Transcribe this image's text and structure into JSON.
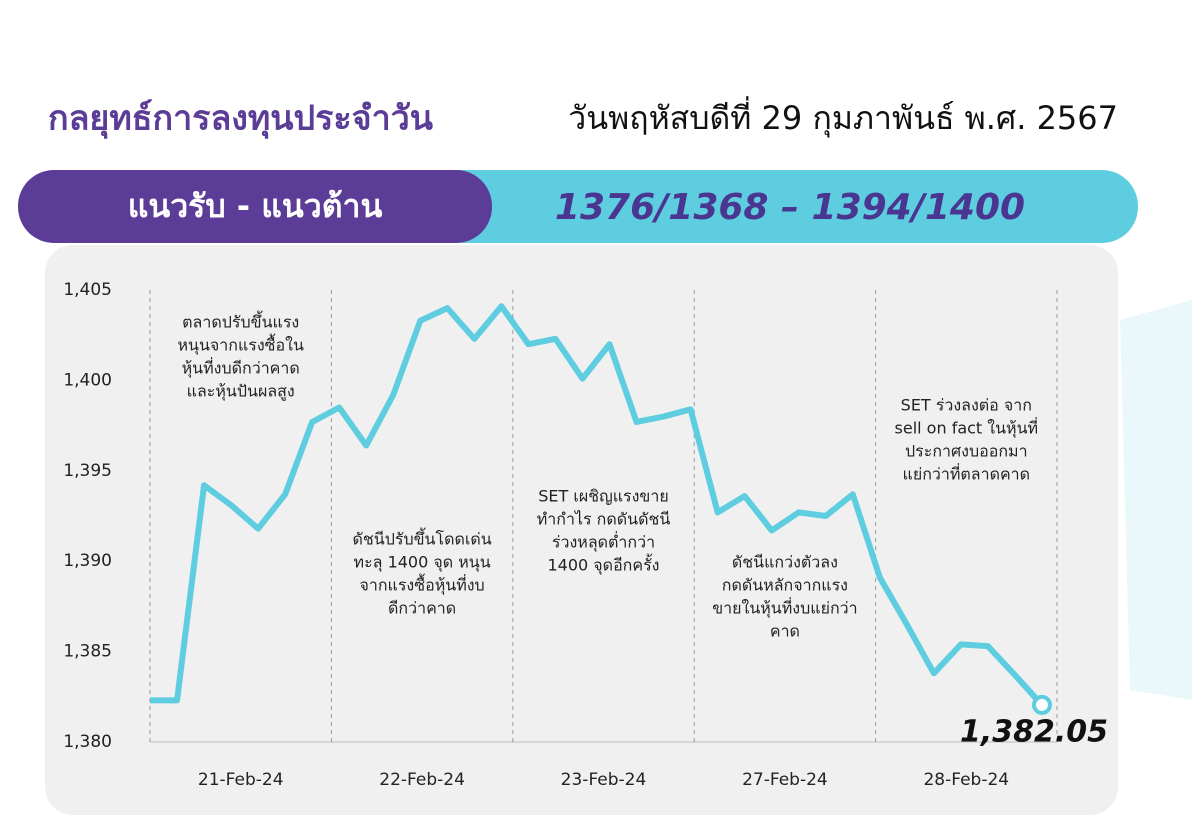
{
  "header": {
    "title": "กลยุทธ์การลงทุนประจำวัน",
    "date": "วันพฤหัสบดีที่ 29 กุมภาพันธ์ พ.ศ. 2567"
  },
  "banner": {
    "label": "แนวรับ - แนวต้าน",
    "levels": "1376/1368 – 1394/1400"
  },
  "chart_data": {
    "type": "line",
    "color": "#5ecde0",
    "date_labels": [
      "21-Feb-24",
      "22-Feb-24",
      "23-Feb-24",
      "27-Feb-24",
      "28-Feb-24"
    ],
    "values": [
      1382.3,
      1382.3,
      1394.2,
      1393.1,
      1391.8,
      1393.7,
      1397.7,
      1398.5,
      1396.4,
      1399.2,
      1403.3,
      1404.0,
      1402.3,
      1404.1,
      1402.0,
      1402.3,
      1400.1,
      1402.0,
      1397.7,
      1398.0,
      1398.4,
      1392.7,
      1393.6,
      1391.7,
      1392.7,
      1392.5,
      1393.7,
      1389.1,
      1386.5,
      1383.8,
      1385.4,
      1385.3,
      1383.7,
      1382.05
    ],
    "last_value_label": "1,382.05",
    "ylim": [
      1380,
      1405
    ],
    "yticks": [
      {
        "value": 1380,
        "label": "1,380"
      },
      {
        "value": 1385,
        "label": "1,385"
      },
      {
        "value": 1390,
        "label": "1,390"
      },
      {
        "value": 1395,
        "label": "1,395"
      },
      {
        "value": 1400,
        "label": "1,400"
      },
      {
        "value": 1405,
        "label": "1,405"
      }
    ],
    "annotations": [
      [
        "ตลาดปรับขึ้นแรง",
        "หนุนจากแรงซื้อใน",
        "หุ้นที่งบดีกว่าคาด",
        "และหุ้นปันผลสูง"
      ],
      [
        "ดัชนีปรับขึ้นโดดเด่น",
        "ทะลุ 1400 จุด หนุน",
        "จากแรงซื้อหุ้นที่งบ",
        "ดีกว่าคาด"
      ],
      [
        "SET เผชิญแรงขาย",
        "ทำกำไร กดดันดัชนี",
        "ร่วงหลุดต่ำกว่า",
        "1400 จุดอีกครั้ง"
      ],
      [
        "ดัชนีแกว่งตัวลง",
        "กดดันหลักจากแรง",
        "ขายในหุ้นที่งบแย่กว่า",
        "คาด"
      ],
      [
        "SET ร่วงลงต่อ จาก",
        "sell on fact ในหุ้นที่",
        "ประกาศงบออกมา",
        "แย่กว่าที่ตลาดคาด"
      ]
    ]
  }
}
